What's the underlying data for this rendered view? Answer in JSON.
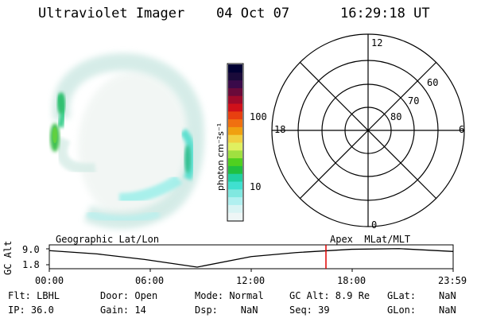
{
  "header": {
    "title": "Ultraviolet Imager",
    "date": "04 Oct 07",
    "time": "16:29:18 UT"
  },
  "colorbar": {
    "label": "photon cm⁻²s⁻¹",
    "tick_labels": [
      "100",
      "10"
    ],
    "colors": [
      "#000033",
      "#1a0a3a",
      "#3a0a4a",
      "#6a0a3a",
      "#a00a2a",
      "#d0101a",
      "#e84010",
      "#f07010",
      "#f0a010",
      "#f0d040",
      "#e0f060",
      "#a0e040",
      "#50d020",
      "#20c040",
      "#20d0a0",
      "#40e0d0",
      "#80e8e0",
      "#b0f0f0",
      "#d8f4f4",
      "#eef6f6"
    ]
  },
  "polar_plot": {
    "mlt_labels": {
      "top": "12",
      "right": "6",
      "bottom": "0",
      "left": "18"
    },
    "lat_labels": [
      "60",
      "70",
      "80"
    ]
  },
  "timeline": {
    "left_label": "Geographic Lat/Lon",
    "right_label": "Apex  MLat/MLT",
    "yaxis_label": "GC Alt",
    "ytick_labels": [
      "9.0",
      "1.8"
    ],
    "xtick_labels": [
      "00:00",
      "06:00",
      "12:00",
      "18:00",
      "23:59"
    ],
    "current_marker_color": "#e00000"
  },
  "info": {
    "flt": "Flt: LBHL",
    "ip": "IP: 36.0",
    "door": "Door: Open",
    "gain": "Gain: 14",
    "mode": "Mode: Normal",
    "dsp": "Dsp:    NaN",
    "gc_alt": "GC Alt: 8.9 Re",
    "seq": "Seq: 39",
    "glat": "GLat:    NaN",
    "glon": "GLon:    NaN"
  },
  "chart_data": {
    "type": "line",
    "x": [
      "00:00",
      "06:00",
      "12:00",
      "18:00",
      "23:59"
    ],
    "series": [
      {
        "values": [
          8.2,
          4.2,
          5.5,
          8.8,
          7.8
        ]
      }
    ],
    "ylim": [
      1.8,
      9.0
    ]
  }
}
